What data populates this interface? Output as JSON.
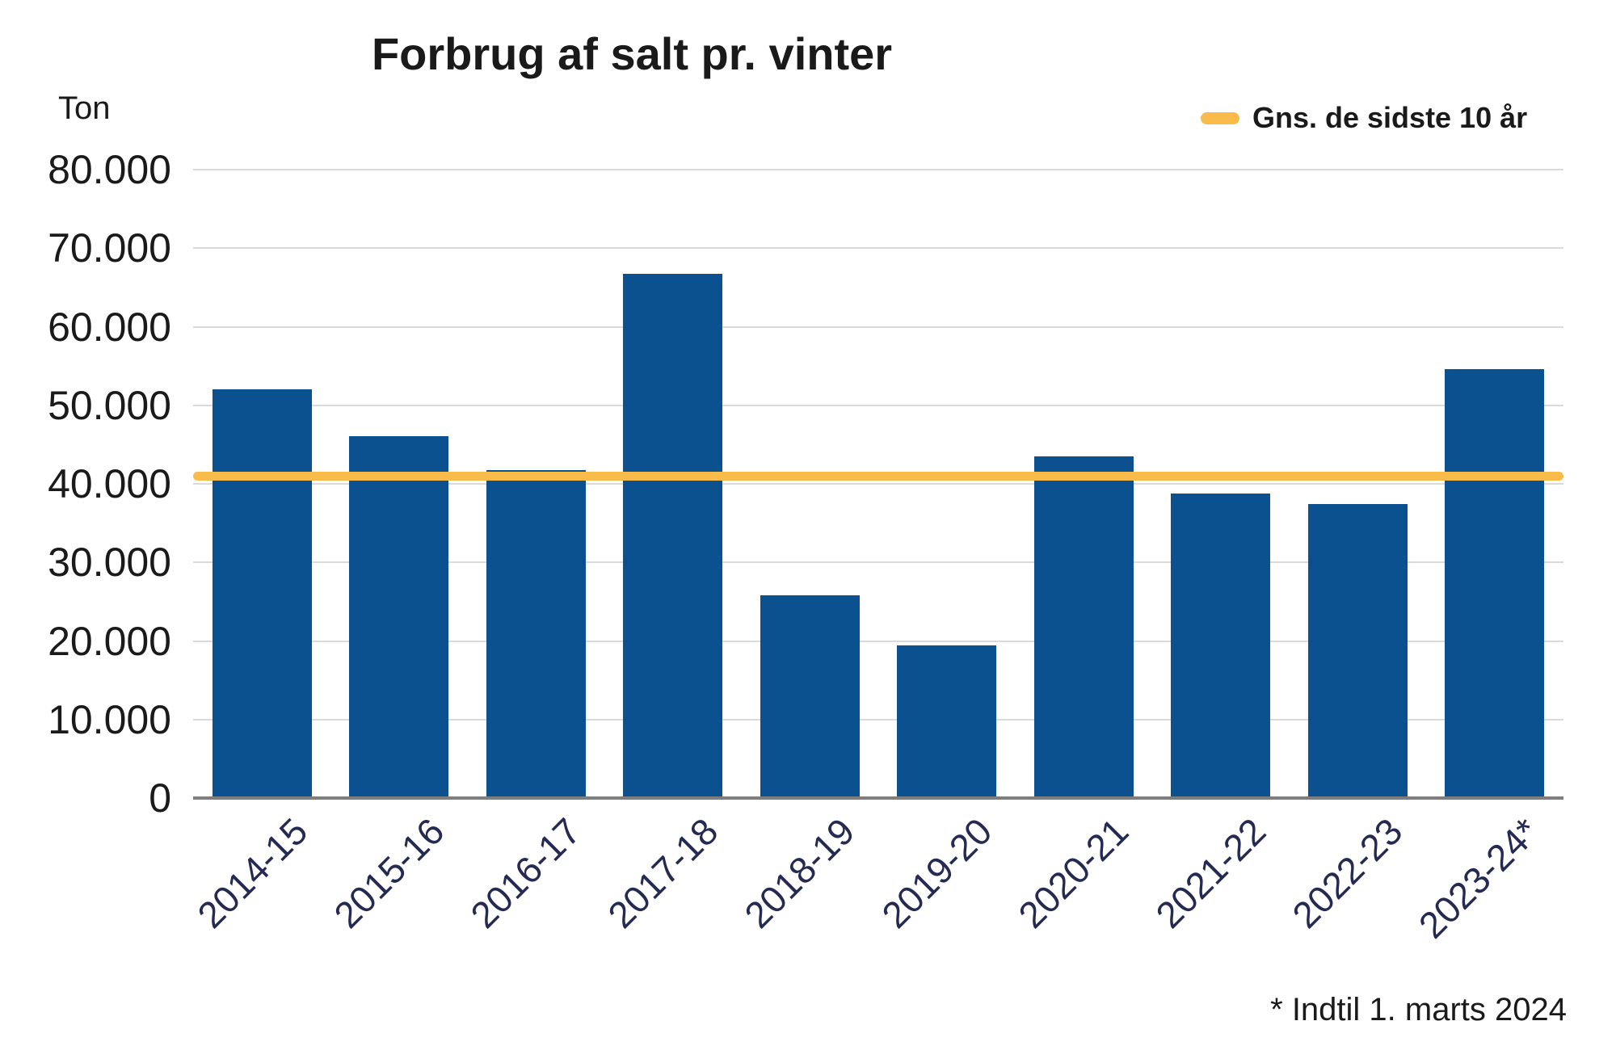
{
  "chart_data": {
    "type": "bar",
    "title": "Forbrug af salt pr. vinter",
    "ylabel": "Ton",
    "categories": [
      "2014-15",
      "2015-16",
      "2016-17",
      "2017-18",
      "2018-19",
      "2019-20",
      "2020-21",
      "2021-22",
      "2022-23",
      "2023-24*"
    ],
    "values": [
      52000,
      46100,
      41700,
      66700,
      25800,
      19400,
      43500,
      38800,
      37400,
      54600
    ],
    "ylim": [
      0,
      80000
    ],
    "ytick_labels": [
      "80.000",
      "70.000",
      "60.000",
      "50.000",
      "40.000",
      "30.000",
      "20.000",
      "10.000",
      "0"
    ],
    "grid": "horizontal",
    "legend_position": "top-right",
    "bar_color": "#0b5190",
    "average_line": {
      "label": "Gns. de sidste 10 år",
      "value": 41000,
      "color": "#f9bc4a"
    },
    "footnote": "* Indtil 1. marts 2024"
  },
  "colors": {
    "background": "#ffffff",
    "text": "#1a1a1a",
    "x_label_text": "#252a52",
    "gridline": "#dadada",
    "axis_line": "#7e7e7e",
    "bar": "#0b5190",
    "accent_line": "#f9bc4a"
  }
}
